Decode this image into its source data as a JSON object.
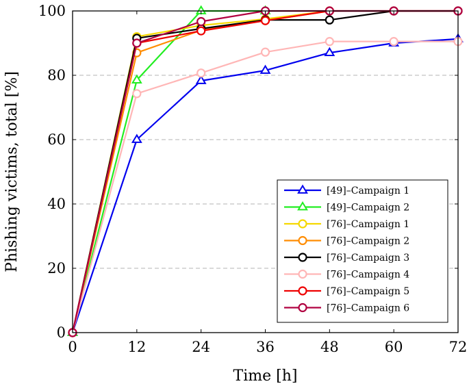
{
  "chart_data": {
    "type": "line",
    "title": "",
    "xlabel": "Time [h]",
    "ylabel": "Phishing victims, total [%]",
    "xlim": [
      0,
      72
    ],
    "ylim": [
      0,
      100
    ],
    "x_ticks": [
      0,
      12,
      24,
      36,
      48,
      60,
      72
    ],
    "y_ticks": [
      0,
      20,
      40,
      60,
      80,
      100
    ],
    "y_grid": "dashed",
    "legend_position": "bottom-right",
    "series": [
      {
        "name": "[49]–Campaign 1",
        "color": "#0000ee",
        "marker": "triangle",
        "x": [
          0,
          12,
          24,
          36,
          48,
          60,
          72
        ],
        "values": [
          0,
          60,
          78.3,
          81.5,
          87,
          90,
          91.3
        ]
      },
      {
        "name": "[49]–Campaign 2",
        "color": "#22ee22",
        "marker": "triangle",
        "x": [
          0,
          12,
          24,
          36
        ],
        "values": [
          0,
          78.5,
          100,
          100
        ]
      },
      {
        "name": "[76]–Campaign 1",
        "color": "#f5d800",
        "marker": "circle",
        "x": [
          0,
          12,
          24,
          36,
          48
        ],
        "values": [
          0,
          92,
          95.5,
          97.5,
          100
        ]
      },
      {
        "name": "[76]–Campaign 2",
        "color": "#ff8c00",
        "marker": "circle",
        "x": [
          0,
          12,
          24,
          36,
          48
        ],
        "values": [
          0,
          87,
          94,
          97,
          100
        ]
      },
      {
        "name": "[76]–Campaign 3",
        "color": "#000000",
        "marker": "circle",
        "x": [
          0,
          12,
          24,
          36,
          48,
          60,
          72
        ],
        "values": [
          0,
          91.5,
          94.5,
          97.2,
          97.2,
          100,
          100
        ]
      },
      {
        "name": "[76]–Campaign 4",
        "color": "#ffb6b6",
        "marker": "circle",
        "x": [
          0,
          12,
          24,
          36,
          48,
          60,
          72
        ],
        "values": [
          0,
          74.3,
          80.7,
          87.2,
          90.5,
          90.5,
          90.5
        ]
      },
      {
        "name": "[76]–Campaign 5",
        "color": "#ee0000",
        "marker": "circle",
        "x": [
          0,
          12,
          24,
          36,
          48,
          60,
          72
        ],
        "values": [
          0,
          90,
          93.8,
          97,
          100,
          100,
          100
        ]
      },
      {
        "name": "[76]–Campaign 6",
        "color": "#b00040",
        "marker": "circle",
        "x": [
          0,
          12,
          24,
          36,
          48,
          60,
          72
        ],
        "values": [
          0,
          90,
          96.7,
          100,
          100,
          100,
          100
        ]
      }
    ]
  }
}
